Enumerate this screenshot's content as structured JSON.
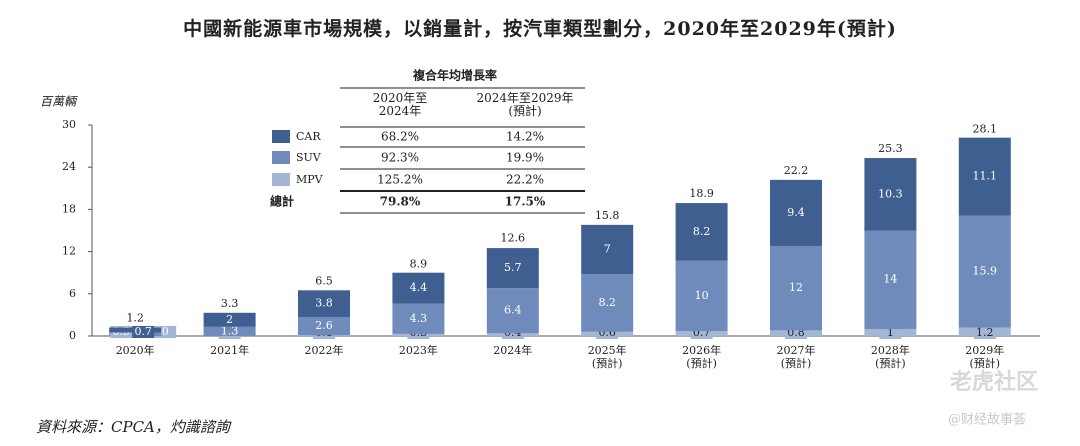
{
  "chart_data": {
    "type": "stacked_bar",
    "title": "中國新能源車市場規模，以銷量計，按汽車類型劃分，2020年至2029年(預計)",
    "y_label": "百萬輛",
    "categories": [
      "2020年",
      "2021年",
      "2022年",
      "2023年",
      "2024年",
      "2025年\n(預計)",
      "2026年\n(預計)",
      "2027年\n(預計)",
      "2028年\n(預計)",
      "2029年\n(預計)"
    ],
    "series": [
      {
        "name": "MPV",
        "color": "#a4b6d6",
        "values": [
          0.0,
          0.0,
          0.1,
          0.3,
          0.4,
          0.6,
          0.7,
          0.8,
          1.0,
          1.2
        ]
      },
      {
        "name": "SUV",
        "color": "#6f8bbb",
        "values": [
          0.5,
          1.3,
          2.6,
          4.3,
          6.4,
          8.2,
          10.0,
          12.0,
          14.0,
          15.9
        ]
      },
      {
        "name": "CAR",
        "color": "#3f5f91",
        "values": [
          0.7,
          2.0,
          3.8,
          4.4,
          5.7,
          7.0,
          8.2,
          9.4,
          10.3,
          11.1
        ]
      }
    ],
    "totals": [
      1.2,
      3.3,
      6.5,
      8.9,
      12.6,
      15.8,
      18.9,
      22.2,
      25.3,
      28.1
    ],
    "ylim": [
      0,
      30
    ],
    "yticks": [
      0,
      6,
      12,
      18,
      24,
      30
    ],
    "cagr_table": {
      "title": "複合年均增長率",
      "columns": [
        "2020年至\n2024年",
        "2024年至2029年\n(預計)"
      ],
      "rows": [
        {
          "values": [
            "68.2%",
            "14.2%"
          ]
        },
        {
          "values": [
            "92.3%",
            "19.9%"
          ]
        },
        {
          "values": [
            "125.2%",
            "22.2%"
          ]
        },
        {
          "label": "總計",
          "values": [
            "79.8%",
            "17.5%"
          ]
        }
      ]
    },
    "source": "資料來源：CPCA，灼識諮詢",
    "watermark": [
      "老虎社区",
      "@财经故事荟"
    ]
  }
}
